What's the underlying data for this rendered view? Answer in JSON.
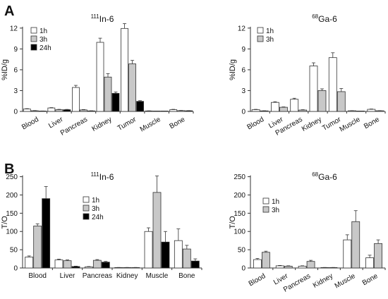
{
  "figure": {
    "panel_a": "A",
    "panel_b": "B"
  },
  "chart_data": [
    {
      "type": "bar",
      "title_sup": "111",
      "title_main": "In-6",
      "ylabel": "%ID/g",
      "ylim": [
        0,
        13
      ],
      "yticks": [
        0,
        3,
        6,
        9,
        12
      ],
      "categories": [
        "Blood",
        "Liver",
        "Pancreas",
        "Kidney",
        "Tumor",
        "Muscle",
        "Bone"
      ],
      "legend": "top-left",
      "series": [
        {
          "name": "1h",
          "color": "#ffffff",
          "values": [
            0.35,
            0.5,
            3.45,
            9.95,
            11.95,
            0.07,
            0.25
          ],
          "errors": [
            0.05,
            0.05,
            0.3,
            0.6,
            0.7,
            0.02,
            0.05
          ]
        },
        {
          "name": "3h",
          "color": "#c8c8c8",
          "values": [
            0.1,
            0.25,
            0.22,
            4.95,
            6.85,
            0.03,
            0.12
          ],
          "errors": [
            0.03,
            0.05,
            0.05,
            0.5,
            0.5,
            0.01,
            0.03
          ]
        },
        {
          "name": "24h",
          "color": "#000000",
          "values": [
            0.05,
            0.25,
            0.08,
            2.6,
            1.45,
            0.02,
            0.1
          ],
          "errors": [
            0.02,
            0.04,
            0.02,
            0.2,
            0.1,
            0.01,
            0.02
          ]
        }
      ]
    },
    {
      "type": "bar",
      "title_sup": "68",
      "title_main": "Ga-6",
      "ylabel": "%ID/g",
      "ylim": [
        0,
        13
      ],
      "yticks": [
        0,
        3,
        6,
        9,
        12
      ],
      "categories": [
        "Blood",
        "Liver",
        "Pancreas",
        "Kidney",
        "Tumor",
        "Muscle",
        "Bone"
      ],
      "legend": "top-left",
      "series": [
        {
          "name": "1h",
          "color": "#ffffff",
          "values": [
            0.25,
            1.3,
            1.75,
            6.55,
            7.75,
            0.1,
            0.3
          ],
          "errors": [
            0.05,
            0.1,
            0.15,
            0.45,
            0.7,
            0.02,
            0.05
          ]
        },
        {
          "name": "3h",
          "color": "#c8c8c8",
          "values": [
            0.08,
            0.6,
            0.2,
            3.0,
            2.85,
            0.05,
            0.1
          ],
          "errors": [
            0.02,
            0.05,
            0.05,
            0.25,
            0.45,
            0.01,
            0.02
          ]
        }
      ]
    },
    {
      "type": "bar",
      "title_sup": "111",
      "title_main": "In-6",
      "ylabel": "T/O",
      "ylim": [
        0,
        255
      ],
      "yticks": [
        0,
        50,
        100,
        150,
        200,
        250
      ],
      "categories": [
        "Blood",
        "Liver",
        "Pancreas",
        "Kidney",
        "Muscle",
        "Bone"
      ],
      "legend": "top-center",
      "series": [
        {
          "name": "1h",
          "color": "#ffffff",
          "values": [
            30,
            22,
            3,
            1,
            100,
            75
          ],
          "errors": [
            3,
            2,
            1,
            0.5,
            10,
            32
          ]
        },
        {
          "name": "3h",
          "color": "#c8c8c8",
          "values": [
            115,
            20,
            21,
            1,
            207,
            52
          ],
          "errors": [
            6,
            2,
            2,
            0.5,
            45,
            10
          ]
        },
        {
          "name": "24h",
          "color": "#000000",
          "values": [
            190,
            4,
            16,
            1,
            71,
            19
          ],
          "errors": [
            33,
            1,
            2,
            0.5,
            29,
            6
          ]
        }
      ]
    },
    {
      "type": "bar",
      "title_sup": "68",
      "title_main": "Ga-6",
      "ylabel": "T/O",
      "ylim": [
        0,
        255
      ],
      "yticks": [
        0,
        50,
        100,
        150,
        200,
        250
      ],
      "categories": [
        "Blood",
        "Liver",
        "Pancreas",
        "Kidney",
        "Muscle",
        "Bone"
      ],
      "legend": "top-left",
      "series": [
        {
          "name": "1h",
          "color": "#ffffff",
          "values": [
            23,
            6,
            5,
            1,
            77,
            28
          ],
          "errors": [
            3,
            1,
            1,
            0.5,
            14,
            7
          ]
        },
        {
          "name": "3h",
          "color": "#c8c8c8",
          "values": [
            43,
            5,
            18,
            1,
            127,
            67
          ],
          "errors": [
            3,
            1,
            3,
            0.5,
            30,
            10
          ]
        }
      ]
    }
  ]
}
